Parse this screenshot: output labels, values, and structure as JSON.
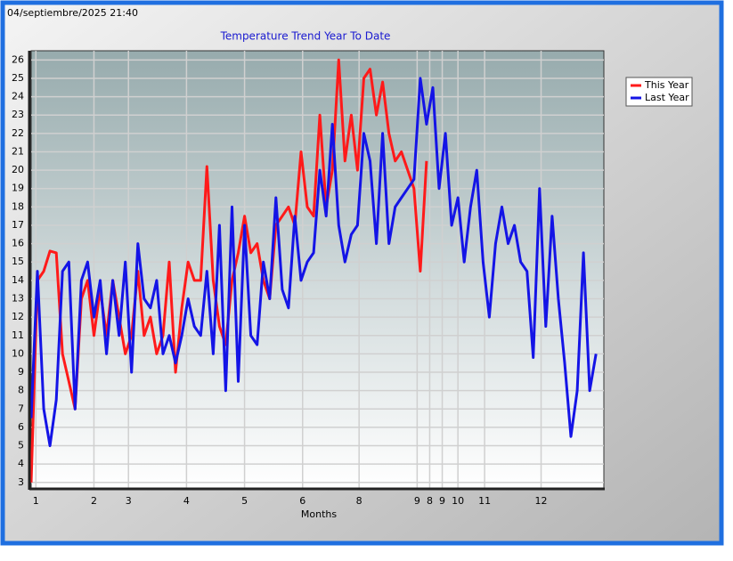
{
  "timestamp": "04/septiembre/2025 21:40",
  "chart_data": {
    "type": "line",
    "title": "Temperature Trend Year To Date",
    "x_label": "Months",
    "x": [
      0,
      4,
      8,
      12,
      16,
      20,
      24,
      28,
      32,
      36,
      40,
      44,
      48,
      52,
      56,
      60,
      64,
      68,
      72,
      76,
      80,
      84,
      88,
      92,
      96,
      100,
      104,
      108,
      112,
      116,
      120,
      124,
      128,
      132,
      136,
      140,
      144,
      148,
      152,
      156,
      160,
      164,
      168,
      172,
      176,
      180,
      184,
      188,
      192,
      196,
      200,
      204,
      208,
      212,
      216,
      220,
      224,
      228,
      232,
      236,
      240,
      244,
      248,
      252,
      256,
      260,
      264,
      268,
      272,
      276,
      280,
      284,
      288,
      292,
      296,
      300,
      304,
      308,
      312,
      316,
      320,
      324,
      328,
      332,
      336,
      340,
      344,
      348,
      352,
      356,
      360
    ],
    "series": [
      {
        "name": "This Year",
        "color": "#ff1a1a",
        "values": [
          3,
          14,
          14.5,
          15.6,
          15.5,
          10,
          8.5,
          7,
          13,
          14,
          11,
          13.5,
          11,
          14,
          12,
          10,
          11,
          14.5,
          11,
          12,
          10,
          11,
          15,
          9,
          12.5,
          15,
          14,
          14,
          20.2,
          14,
          11.5,
          10.5,
          14,
          15.5,
          17.5,
          15.5,
          16,
          14,
          13,
          17,
          17.5,
          18,
          17,
          21,
          18,
          17.5,
          23,
          18,
          20,
          26,
          20.5,
          23,
          20,
          25,
          25.5,
          23,
          24.8,
          22,
          20.5,
          21,
          20,
          19,
          14.5,
          20.5,
          null,
          null,
          null,
          null,
          null,
          null,
          null,
          null,
          null,
          null,
          null,
          null,
          null,
          null,
          null,
          null,
          null,
          null,
          null,
          null,
          null,
          null,
          null,
          null,
          null,
          null,
          null
        ]
      },
      {
        "name": "Last Year",
        "color": "#1414e6",
        "values": [
          6.5,
          14.5,
          7,
          5,
          7.5,
          14.5,
          15,
          7,
          14,
          15,
          12,
          14,
          10,
          14,
          11,
          15,
          9,
          16,
          13,
          12.5,
          14,
          10,
          11,
          9.5,
          11,
          13,
          11.5,
          11,
          14.5,
          10,
          17,
          8,
          18,
          8.5,
          17,
          11,
          10.5,
          15,
          13,
          18.5,
          13.5,
          12.5,
          17.5,
          14,
          15,
          15.5,
          20,
          17.5,
          22.5,
          17,
          15,
          16.5,
          17,
          22,
          20.5,
          16,
          22,
          16,
          18,
          18.5,
          19,
          19.5,
          25,
          22.5,
          24.5,
          19,
          22,
          17,
          18.5,
          15,
          18,
          20,
          15,
          12,
          16,
          18,
          16,
          17,
          15,
          14.5,
          9.8,
          19,
          11.5,
          17.5,
          13,
          9.5,
          5.5,
          8,
          15.5,
          8,
          10
        ]
      }
    ],
    "xlim": [
      0,
      365
    ],
    "ylim": [
      2.7,
      26.5
    ],
    "xticks": [
      {
        "value": 3,
        "label": "1"
      },
      {
        "value": 40,
        "label": "2"
      },
      {
        "value": 62,
        "label": "3"
      },
      {
        "value": 99,
        "label": "4"
      },
      {
        "value": 136,
        "label": "5"
      },
      {
        "value": 173,
        "label": "6"
      },
      {
        "value": 209,
        "label": "8"
      },
      {
        "value": 246,
        "label": "9"
      },
      {
        "value": 254,
        "label": "8"
      },
      {
        "value": 262,
        "label": "9"
      },
      {
        "value": 272,
        "label": "10"
      },
      {
        "value": 289,
        "label": "11"
      },
      {
        "value": 325,
        "label": "12"
      }
    ],
    "yticks": [
      3,
      4,
      5,
      6,
      7,
      8,
      9,
      10,
      11,
      12,
      13,
      14,
      15,
      16,
      17,
      18,
      19,
      20,
      21,
      22,
      23,
      24,
      25,
      26
    ],
    "grid": true,
    "legend": "right"
  }
}
